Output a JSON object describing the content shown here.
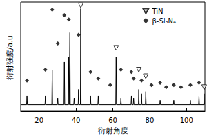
{
  "chart_data": {
    "type": "line",
    "x_label": "衍射角度",
    "y_label": "衍射强度/a.u.",
    "xlim": [
      10,
      110
    ],
    "xticks": [
      20,
      40,
      60,
      80,
      100
    ],
    "ylim": [
      0,
      100
    ],
    "tick_labels": "x",
    "legend": "upper right",
    "series": [
      {
        "type": "line",
        "color": "#000000",
        "x": [
          10,
          13.2,
          13.4,
          13.6,
          23.2,
          23.4,
          23.6,
          26.9,
          27.1,
          27.3,
          29.9,
          30.1,
          30.3,
          33.5,
          33.7,
          33.9,
          35.9,
          36.1,
          36.3,
          36.5,
          36.7,
          36.9,
          38.8,
          39.0,
          39.2,
          41.2,
          41.4,
          41.6,
          42.4,
          42.6,
          42.8,
          47.7,
          47.9,
          48.1,
          51.9,
          52.1,
          52.3,
          61.6,
          61.8,
          62.0,
          64.2,
          64.4,
          64.6,
          69.9,
          70.1,
          70.3,
          71.1,
          71.3,
          71.5,
          73.9,
          74.1,
          74.3,
          75.4,
          75.6,
          75.8,
          77.7,
          77.9,
          78.1,
          85.5,
          85.7,
          85.9,
          92.9,
          93.1,
          93.3,
          101.9,
          102.1,
          102.3,
          106.6,
          106.8,
          107.0,
          109.4,
          109.6,
          109.8,
          110
        ],
        "values": [
          6,
          6,
          14,
          6,
          6,
          14,
          6,
          6,
          38,
          6,
          6,
          12,
          6,
          6,
          45,
          6,
          6,
          50,
          6,
          6,
          72,
          6,
          6,
          12,
          6,
          6,
          20,
          6,
          6,
          94,
          6,
          6,
          14,
          6,
          6,
          14,
          6,
          6,
          50,
          6,
          6,
          12,
          6,
          6,
          14,
          6,
          6,
          12,
          6,
          6,
          20,
          6,
          6,
          16,
          6,
          6,
          18,
          6,
          6,
          10,
          6,
          6,
          10,
          6,
          6,
          10,
          6,
          6,
          14,
          6,
          6,
          16,
          6,
          6
        ]
      },
      {
        "name": "TiN",
        "type": "scatter",
        "marker": "triangle-down",
        "color": "#000000",
        "x": [
          42.6,
          61.8,
          74.1,
          77.9,
          109.6
        ],
        "values": [
          97,
          58,
          38,
          32,
          22
        ]
      },
      {
        "name": "β-Si₃N₄",
        "type": "scatter",
        "marker": "diamond",
        "color": "#000000",
        "x": [
          13.4,
          23.4,
          27.1,
          30.1,
          33.7,
          36.1,
          41.4,
          47.9,
          52.1,
          58.6,
          64.4,
          70.1,
          71.3,
          75.6,
          81,
          85.7,
          89,
          93.1,
          97,
          102.1,
          106.8
        ],
        "values": [
          28,
          38,
          93,
          62,
          88,
          84,
          70,
          36,
          30,
          24,
          38,
          36,
          30,
          28,
          24,
          26,
          22,
          24,
          22,
          24,
          26
        ]
      }
    ]
  }
}
